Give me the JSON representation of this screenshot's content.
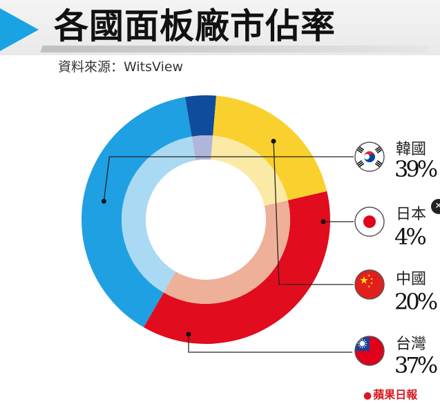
{
  "header": {
    "title": "各國面板廠市佔率",
    "source": "資料來源：WitsView"
  },
  "chart_data": {
    "type": "pie",
    "title": "各國面板廠市佔率",
    "series": [
      {
        "name": "韓國",
        "value": 39,
        "label": "39%",
        "color": "#1fa0e2",
        "inner_color": "#a9d9f3",
        "flag": "south-korea-flag-icon"
      },
      {
        "name": "日本",
        "value": 4,
        "label": "4%",
        "color": "#0f4c9c",
        "inner_color": "#b0b6d9",
        "flag": "japan-flag-icon"
      },
      {
        "name": "中國",
        "value": 20,
        "label": "20%",
        "color": "#f9d02e",
        "inner_color": "#fbeaa6",
        "flag": "china-flag-icon"
      },
      {
        "name": "台灣",
        "value": 37,
        "label": "37%",
        "color": "#e10c1e",
        "inner_color": "#eeb099",
        "flag": "taiwan-flag-icon"
      }
    ]
  },
  "footer": {
    "brand": "蘋果日報"
  }
}
